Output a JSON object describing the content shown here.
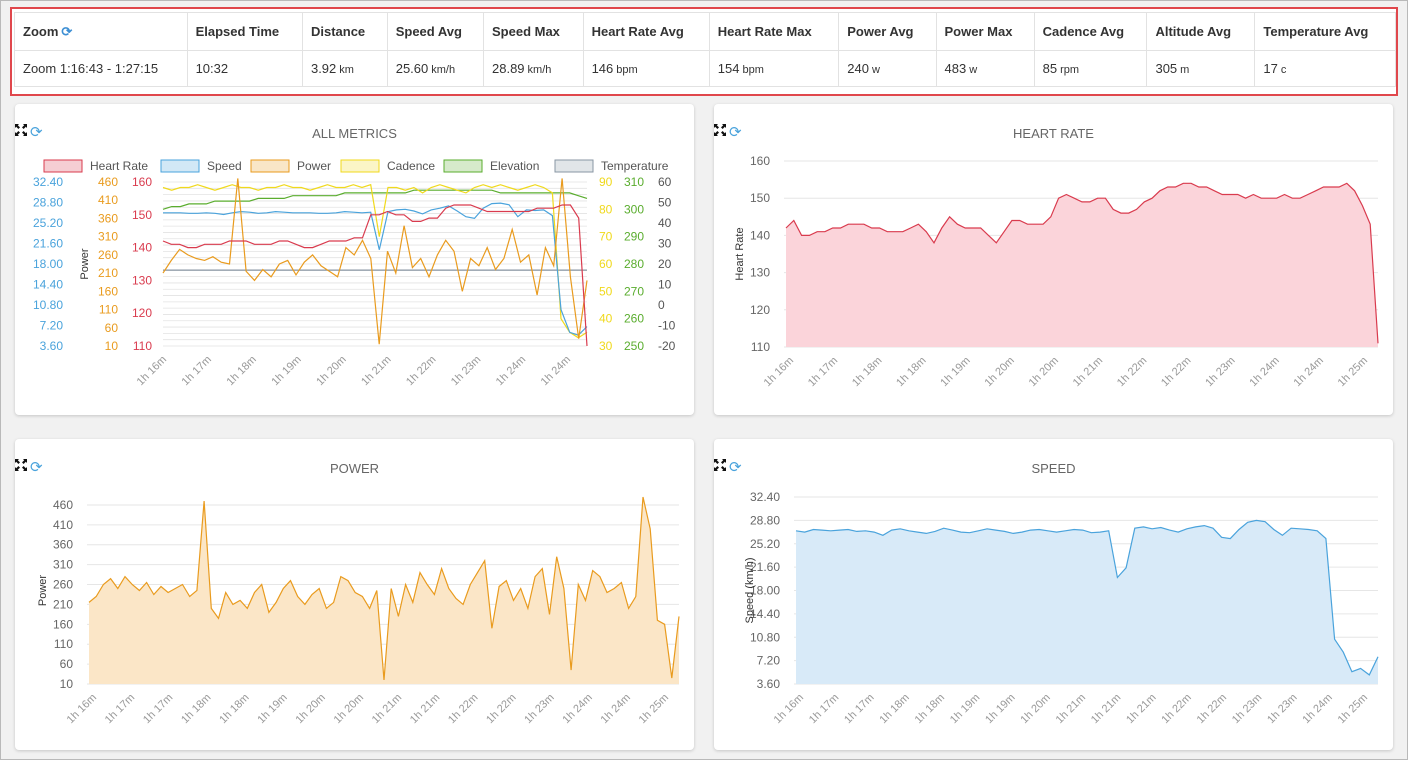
{
  "summary": {
    "headers": [
      "Zoom",
      "Elapsed Time",
      "Distance",
      "Speed Avg",
      "Speed Max",
      "Heart Rate Avg",
      "Heart Rate Max",
      "Power Avg",
      "Power Max",
      "Cadence Avg",
      "Altitude Avg",
      "Temperature Avg"
    ],
    "values": [
      {
        "v": "Zoom 1:16:43 - 1:27:15",
        "u": ""
      },
      {
        "v": "10:32",
        "u": ""
      },
      {
        "v": "3.92",
        "u": "km"
      },
      {
        "v": "25.60",
        "u": "km/h"
      },
      {
        "v": "28.89",
        "u": "km/h"
      },
      {
        "v": "146",
        "u": "bpm"
      },
      {
        "v": "154",
        "u": "bpm"
      },
      {
        "v": "240",
        "u": "w"
      },
      {
        "v": "483",
        "u": "w"
      },
      {
        "v": "85",
        "u": "rpm"
      },
      {
        "v": "305",
        "u": "m"
      },
      {
        "v": "17",
        "u": "c"
      }
    ],
    "refresh_icon": "refresh-icon"
  },
  "colors": {
    "heart_rate": "#d93b4e",
    "heart_rate_fill": "#fbd4da",
    "speed": "#4aa3dc",
    "speed_fill": "#d8eaf8",
    "power": "#e99b1e",
    "power_fill": "#fbe6c7",
    "cadence": "#f0d91c",
    "elevation": "#5aad2e",
    "temperature": "#8896a3",
    "highlight_border": "#e0474c"
  },
  "icons": {
    "refresh": "refresh-icon",
    "expand": "expand-icon"
  },
  "chart_data": [
    {
      "type": "line",
      "title": "ALL METRICS",
      "legend_position": "top",
      "xticks": [
        "1h 16m",
        "1h 17m",
        "1h 18m",
        "1h 19m",
        "1h 20m",
        "1h 21m",
        "1h 22m",
        "1h 23m",
        "1h 24m",
        "1h 24m"
      ],
      "series": [
        {
          "name": "Heart Rate",
          "axis": "left",
          "color": "#d93b4e",
          "ticks": [
            "110",
            "120",
            "130",
            "140",
            "150",
            "160"
          ],
          "range": [
            110,
            160
          ],
          "values": [
            142,
            141,
            141,
            140,
            140,
            141,
            141,
            141,
            142,
            142,
            142,
            141,
            141,
            141,
            142,
            142,
            141,
            140,
            140,
            141,
            142,
            142,
            142,
            143,
            143,
            150,
            150,
            151,
            150,
            150,
            148,
            148,
            149,
            149,
            152,
            153,
            153,
            153,
            152,
            151,
            151,
            151,
            151,
            151,
            151,
            152,
            152,
            152,
            153,
            153,
            149,
            110
          ]
        },
        {
          "name": "Speed",
          "axis": "left",
          "color": "#4aa3dc",
          "ticks": [
            "3.60",
            "7.20",
            "10.80",
            "14.40",
            "18.00",
            "21.60",
            "25.20",
            "28.80",
            "32.40"
          ],
          "range": [
            3.6,
            32.4
          ],
          "values": [
            27.0,
            27.0,
            27.0,
            26.9,
            26.9,
            27.0,
            26.9,
            26.7,
            27.0,
            27.2,
            27.1,
            26.9,
            27.0,
            27.2,
            27.1,
            27.0,
            27.0,
            27.0,
            26.9,
            26.9,
            27.0,
            27.2,
            27.1,
            27.0,
            27.1,
            20.5,
            27.2,
            27.5,
            27.6,
            27.3,
            26.8,
            27.5,
            27.8,
            28.2,
            27.3,
            26.3,
            26.0,
            27.8,
            28.6,
            28.7,
            28.4,
            26.3,
            27.5,
            27.4,
            27.5,
            26.5,
            10.0,
            6.0,
            5.5,
            7.0
          ]
        },
        {
          "name": "Power",
          "axis": "left",
          "color": "#e99b1e",
          "ticks": [
            "10",
            "60",
            "110",
            "160",
            "210",
            "260",
            "310",
            "360",
            "410",
            "460"
          ],
          "range": [
            10,
            460
          ],
          "values": [
            210,
            245,
            275,
            260,
            250,
            245,
            255,
            240,
            235,
            470,
            215,
            190,
            220,
            200,
            235,
            245,
            205,
            240,
            260,
            230,
            215,
            200,
            280,
            260,
            300,
            250,
            15,
            270,
            210,
            340,
            225,
            250,
            200,
            260,
            300,
            270,
            160,
            250,
            230,
            280,
            220,
            250,
            330,
            240,
            260,
            150,
            280,
            230,
            470,
            200,
            30,
            190
          ]
        },
        {
          "name": "Cadence",
          "axis": "right",
          "color": "#f0d91c",
          "ticks": [
            "30",
            "40",
            "50",
            "60",
            "70",
            "80",
            "90"
          ],
          "range": [
            30,
            90
          ],
          "values": [
            88,
            87,
            88,
            88,
            89,
            88,
            87,
            88,
            89,
            88,
            88,
            87,
            88,
            88,
            89,
            88,
            88,
            87,
            88,
            89,
            88,
            88,
            89,
            88,
            89,
            70,
            88,
            88,
            87,
            88,
            86,
            88,
            89,
            88,
            87,
            86,
            88,
            89,
            88,
            89,
            88,
            87,
            88,
            89,
            88,
            86,
            40,
            35,
            33,
            35
          ]
        },
        {
          "name": "Elevation",
          "axis": "right",
          "color": "#5aad2e",
          "ticks": [
            "250",
            "260",
            "270",
            "280",
            "290",
            "300",
            "310"
          ],
          "range": [
            250,
            310
          ],
          "values": [
            300,
            301,
            301,
            302,
            302,
            302,
            303,
            303,
            303,
            303,
            303,
            304,
            304,
            304,
            304,
            305,
            305,
            305,
            305,
            305,
            305,
            306,
            306,
            306,
            306,
            306,
            306,
            306,
            306,
            307,
            307,
            307,
            307,
            307,
            307,
            307,
            307,
            307,
            307,
            306,
            306,
            306,
            306,
            306,
            306,
            306,
            306,
            306,
            305,
            304
          ]
        },
        {
          "name": "Temperature",
          "axis": "right",
          "color": "#8896a3",
          "ticks": [
            "-20",
            "-10",
            "0",
            "10",
            "20",
            "30",
            "40",
            "50",
            "60"
          ],
          "range": [
            -20,
            60
          ],
          "values": [
            17,
            17,
            17,
            17,
            17,
            17,
            17,
            17,
            17,
            17,
            17,
            17,
            17,
            17,
            17,
            17,
            17,
            17,
            17,
            17,
            17,
            17,
            17,
            17,
            17,
            17,
            17,
            17,
            17,
            17,
            17,
            17,
            17,
            17,
            17,
            17,
            17,
            17,
            17,
            17,
            17,
            17,
            17,
            17,
            17,
            17,
            17,
            17,
            17,
            17
          ]
        }
      ]
    },
    {
      "type": "area",
      "title": "HEART RATE",
      "ylabel": "Heart Rate",
      "yticks": [
        "110",
        "120",
        "130",
        "140",
        "150",
        "160"
      ],
      "ylim": [
        110,
        160
      ],
      "xticks": [
        "1h 16m",
        "1h 17m",
        "1h 18m",
        "1h 18m",
        "1h 19m",
        "1h 20m",
        "1h 20m",
        "1h 21m",
        "1h 22m",
        "1h 22m",
        "1h 23m",
        "1h 24m",
        "1h 24m",
        "1h 25m"
      ],
      "values": [
        142,
        144,
        140,
        140,
        141,
        141,
        142,
        142,
        143,
        143,
        143,
        142,
        142,
        141,
        141,
        141,
        142,
        143,
        141,
        138,
        142,
        145,
        143,
        142,
        142,
        142,
        140,
        138,
        141,
        144,
        144,
        143,
        143,
        143,
        145,
        150,
        151,
        150,
        149,
        149,
        150,
        150,
        147,
        146,
        146,
        147,
        149,
        150,
        152,
        153,
        153,
        154,
        154,
        153,
        153,
        152,
        151,
        151,
        151,
        150,
        151,
        150,
        150,
        150,
        151,
        150,
        150,
        151,
        152,
        153,
        153,
        153,
        154,
        152,
        148,
        143,
        111
      ]
    },
    {
      "type": "area",
      "title": "POWER",
      "ylabel": "Power",
      "yticks": [
        "10",
        "60",
        "110",
        "160",
        "210",
        "260",
        "310",
        "360",
        "410",
        "460"
      ],
      "ylim": [
        10,
        480
      ],
      "xticks": [
        "1h 16m",
        "1h 17m",
        "1h 17m",
        "1h 18m",
        "1h 18m",
        "1h 19m",
        "1h 20m",
        "1h 20m",
        "1h 21m",
        "1h 21m",
        "1h 22m",
        "1h 22m",
        "1h 23m",
        "1h 24m",
        "1h 24m",
        "1h 25m"
      ],
      "values": [
        215,
        230,
        260,
        275,
        250,
        280,
        260,
        245,
        265,
        235,
        255,
        240,
        250,
        260,
        230,
        245,
        470,
        200,
        175,
        240,
        210,
        220,
        200,
        240,
        260,
        190,
        215,
        250,
        270,
        230,
        210,
        235,
        250,
        200,
        215,
        280,
        270,
        240,
        230,
        200,
        245,
        20,
        250,
        180,
        260,
        215,
        290,
        260,
        235,
        300,
        250,
        225,
        210,
        260,
        290,
        320,
        150,
        255,
        270,
        220,
        250,
        200,
        280,
        300,
        185,
        330,
        250,
        45,
        260,
        220,
        295,
        280,
        240,
        250,
        265,
        200,
        230,
        480,
        400,
        170,
        160,
        25,
        180
      ]
    },
    {
      "type": "area",
      "title": "SPEED",
      "ylabel": "Speed (km/h)",
      "yticks": [
        "3.60",
        "7.20",
        "10.80",
        "14.40",
        "18.00",
        "21.60",
        "25.20",
        "28.80",
        "32.40"
      ],
      "ylim": [
        3.6,
        32.4
      ],
      "xticks": [
        "1h 16m",
        "1h 17m",
        "1h 17m",
        "1h 18m",
        "1h 18m",
        "1h 19m",
        "1h 19m",
        "1h 20m",
        "1h 21m",
        "1h 21m",
        "1h 21m",
        "1h 22m",
        "1h 22m",
        "1h 23m",
        "1h 23m",
        "1h 24m",
        "1h 25m"
      ],
      "values": [
        27.2,
        27.0,
        27.4,
        27.3,
        27.2,
        27.3,
        27.4,
        27.1,
        27.2,
        27.0,
        26.5,
        27.3,
        27.5,
        27.2,
        27.0,
        26.8,
        27.1,
        27.6,
        27.3,
        27.0,
        26.9,
        27.2,
        27.5,
        27.3,
        27.1,
        26.8,
        27.0,
        27.3,
        27.4,
        27.2,
        27.0,
        27.2,
        27.4,
        27.3,
        26.9,
        27.0,
        27.2,
        20.0,
        21.5,
        27.6,
        27.8,
        27.5,
        27.7,
        27.3,
        27.0,
        27.5,
        27.8,
        28.0,
        27.6,
        26.2,
        26.0,
        27.4,
        28.5,
        28.8,
        28.6,
        27.4,
        26.5,
        27.6,
        27.5,
        27.4,
        27.2,
        26.0,
        10.5,
        8.5,
        5.5,
        6.0,
        5.0,
        7.8
      ]
    }
  ]
}
